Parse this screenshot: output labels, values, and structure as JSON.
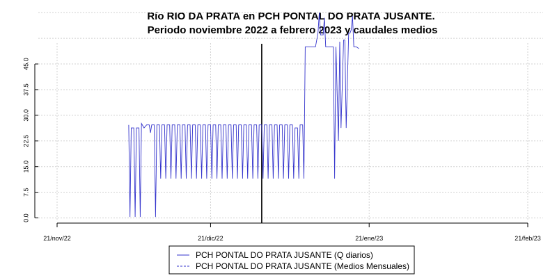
{
  "chart_data": {
    "type": "line",
    "title": "Río RIO DA PRATA en PCH PONTAL DO PRATA JUSANTE.",
    "subtitle": "Periodo noviembre 2022 a febrero 2023 y caudales medios",
    "xlabel": "",
    "ylabel": "",
    "x_range": [
      "2022-11-21",
      "2023-02-21"
    ],
    "ylim": [
      -0.9,
      51.1
    ],
    "x_ticks": [
      "2022-11-21",
      "2022-12-21",
      "2023-01-21",
      "2023-02-21"
    ],
    "x_tick_labels": [
      "21/nov/22",
      "21/dic/22",
      "21/ene/23",
      "21/feb/23"
    ],
    "y_ticks": [
      0.0,
      7.5,
      15.0,
      22.5,
      30.0,
      37.5,
      45.0
    ],
    "y_tick_labels": [
      "0.0",
      "7.5",
      "15.0",
      "22.5",
      "30.0",
      "37.5",
      "45.0"
    ],
    "grid": true,
    "vertical_marker_date": "2022-12-31",
    "series": [
      {
        "name": "PCH PONTAL DO PRATA JUSANTE (Q diarios)",
        "style": "solid",
        "color": "#3333cc",
        "points": [
          [
            "2022-12-05 00:00",
            27.2
          ],
          [
            "2022-12-05 06:00",
            0.3
          ],
          [
            "2022-12-05 12:00",
            26.3
          ],
          [
            "2022-12-06 00:00",
            26.3
          ],
          [
            "2022-12-06 06:00",
            0.3
          ],
          [
            "2022-12-06 12:00",
            26.3
          ],
          [
            "2022-12-07 00:00",
            26.3
          ],
          [
            "2022-12-07 06:00",
            0.3
          ],
          [
            "2022-12-07 12:00",
            27.6
          ],
          [
            "2022-12-08 00:00",
            26.3
          ],
          [
            "2022-12-08 12:00",
            27.2
          ],
          [
            "2022-12-09 00:00",
            27.2
          ],
          [
            "2022-12-09 06:00",
            24.9
          ],
          [
            "2022-12-09 12:00",
            27.2
          ],
          [
            "2022-12-10 00:00",
            27.2
          ],
          [
            "2022-12-10 06:00",
            0.3
          ],
          [
            "2022-12-10 12:00",
            27.2
          ],
          [
            "2022-12-11 00:00",
            27.2
          ],
          [
            "2022-12-11 06:00",
            11.5
          ],
          [
            "2022-12-11 12:00",
            27.2
          ],
          [
            "2022-12-12 00:00",
            27.2
          ],
          [
            "2022-12-12 06:00",
            11.5
          ],
          [
            "2022-12-12 12:00",
            27.2
          ],
          [
            "2022-12-13 00:00",
            27.2
          ],
          [
            "2022-12-13 06:00",
            11.5
          ],
          [
            "2022-12-13 12:00",
            27.2
          ],
          [
            "2022-12-14 00:00",
            27.2
          ],
          [
            "2022-12-14 06:00",
            11.5
          ],
          [
            "2022-12-14 12:00",
            27.2
          ],
          [
            "2022-12-15 00:00",
            27.2
          ],
          [
            "2022-12-15 06:00",
            11.5
          ],
          [
            "2022-12-15 12:00",
            27.2
          ],
          [
            "2022-12-16 00:00",
            27.2
          ],
          [
            "2022-12-16 06:00",
            11.5
          ],
          [
            "2022-12-16 12:00",
            27.2
          ],
          [
            "2022-12-17 00:00",
            27.2
          ],
          [
            "2022-12-17 06:00",
            11.5
          ],
          [
            "2022-12-17 12:00",
            27.2
          ],
          [
            "2022-12-18 00:00",
            27.2
          ],
          [
            "2022-12-18 06:00",
            11.5
          ],
          [
            "2022-12-18 12:00",
            27.2
          ],
          [
            "2022-12-19 00:00",
            27.2
          ],
          [
            "2022-12-19 06:00",
            11.5
          ],
          [
            "2022-12-19 12:00",
            27.2
          ],
          [
            "2022-12-20 00:00",
            27.2
          ],
          [
            "2022-12-20 06:00",
            11.5
          ],
          [
            "2022-12-20 12:00",
            27.2
          ],
          [
            "2022-12-21 00:00",
            27.2
          ],
          [
            "2022-12-21 06:00",
            11.5
          ],
          [
            "2022-12-21 12:00",
            27.2
          ],
          [
            "2022-12-22 00:00",
            27.2
          ],
          [
            "2022-12-22 06:00",
            11.5
          ],
          [
            "2022-12-22 12:00",
            27.2
          ],
          [
            "2022-12-23 00:00",
            27.2
          ],
          [
            "2022-12-23 06:00",
            11.5
          ],
          [
            "2022-12-23 12:00",
            27.2
          ],
          [
            "2022-12-24 00:00",
            27.2
          ],
          [
            "2022-12-24 06:00",
            11.5
          ],
          [
            "2022-12-24 12:00",
            27.2
          ],
          [
            "2022-12-25 00:00",
            27.2
          ],
          [
            "2022-12-25 06:00",
            11.5
          ],
          [
            "2022-12-25 12:00",
            27.2
          ],
          [
            "2022-12-26 00:00",
            27.2
          ],
          [
            "2022-12-26 06:00",
            11.5
          ],
          [
            "2022-12-26 12:00",
            27.2
          ],
          [
            "2022-12-27 00:00",
            27.2
          ],
          [
            "2022-12-27 06:00",
            11.5
          ],
          [
            "2022-12-27 12:00",
            27.2
          ],
          [
            "2022-12-28 00:00",
            27.2
          ],
          [
            "2022-12-28 06:00",
            11.5
          ],
          [
            "2022-12-28 12:00",
            27.2
          ],
          [
            "2022-12-29 00:00",
            27.2
          ],
          [
            "2022-12-29 06:00",
            11.5
          ],
          [
            "2022-12-29 12:00",
            27.2
          ],
          [
            "2022-12-30 00:00",
            27.2
          ],
          [
            "2022-12-30 06:00",
            11.5
          ],
          [
            "2022-12-30 12:00",
            27.2
          ],
          [
            "2022-12-31 00:00",
            27.2
          ],
          [
            "2022-12-31 06:00",
            11.5
          ],
          [
            "2022-12-31 12:00",
            27.2
          ],
          [
            "2023-01-01 00:00",
            27.2
          ],
          [
            "2023-01-01 06:00",
            11.5
          ],
          [
            "2023-01-01 12:00",
            27.2
          ],
          [
            "2023-01-02 00:00",
            27.2
          ],
          [
            "2023-01-02 06:00",
            11.5
          ],
          [
            "2023-01-02 12:00",
            27.2
          ],
          [
            "2023-01-03 00:00",
            27.2
          ],
          [
            "2023-01-03 06:00",
            11.5
          ],
          [
            "2023-01-03 12:00",
            27.2
          ],
          [
            "2023-01-04 00:00",
            27.2
          ],
          [
            "2023-01-04 06:00",
            11.5
          ],
          [
            "2023-01-04 12:00",
            27.2
          ],
          [
            "2023-01-05 00:00",
            27.2
          ],
          [
            "2023-01-05 06:00",
            11.5
          ],
          [
            "2023-01-05 12:00",
            27.2
          ],
          [
            "2023-01-06 00:00",
            27.2
          ],
          [
            "2023-01-06 06:00",
            11.5
          ],
          [
            "2023-01-06 12:00",
            26.3
          ],
          [
            "2023-01-07 00:00",
            26.3
          ],
          [
            "2023-01-07 06:00",
            11.5
          ],
          [
            "2023-01-07 12:00",
            27.2
          ],
          [
            "2023-01-08 00:00",
            27.2
          ],
          [
            "2023-01-08 06:00",
            11.5
          ],
          [
            "2023-01-08 12:00",
            50.0
          ],
          [
            "2023-01-10 06:00",
            50.0
          ],
          [
            "2023-01-10 12:00",
            50.0
          ],
          [
            "2023-01-11 00:00",
            54.0
          ],
          [
            "2023-01-11 06:00",
            60.0
          ],
          [
            "2023-01-11 12:00",
            53.5
          ],
          [
            "2023-01-12 00:00",
            53.5
          ],
          [
            "2023-01-12 06:00",
            58.5
          ],
          [
            "2023-01-12 12:00",
            50.0
          ],
          [
            "2023-01-13 00:00",
            50.0
          ],
          [
            "2023-01-13 06:00",
            50.0
          ],
          [
            "2023-01-13 12:00",
            50.0
          ],
          [
            "2023-01-14 00:00",
            50.0
          ],
          [
            "2023-01-14 06:00",
            11.5
          ],
          [
            "2023-01-14 12:00",
            50.0
          ],
          [
            "2023-01-15 00:00",
            22.5
          ],
          [
            "2023-01-15 06:00",
            51.5
          ],
          [
            "2023-01-15 12:00",
            26.3
          ],
          [
            "2023-01-16 00:00",
            52.0
          ],
          [
            "2023-01-16 06:00",
            52.0
          ],
          [
            "2023-01-16 12:00",
            26.3
          ],
          [
            "2023-01-17 00:00",
            54.0
          ],
          [
            "2023-01-17 06:00",
            54.0
          ],
          [
            "2023-01-17 12:00",
            55.0
          ],
          [
            "2023-01-17 18:00",
            59.0
          ],
          [
            "2023-01-18 00:00",
            50.0
          ],
          [
            "2023-01-18 12:00",
            50.0
          ],
          [
            "2023-01-19 00:00",
            49.5
          ]
        ]
      },
      {
        "name": "PCH PONTAL DO PRATA JUSANTE (Medios Mensuales)",
        "style": "dashed",
        "color": "#3333cc",
        "points": []
      }
    ],
    "legend": {
      "placement": "bottom-center",
      "entries": [
        "PCH PONTAL DO PRATA JUSANTE (Q diarios)",
        "PCH PONTAL DO PRATA JUSANTE (Medios Mensuales)"
      ]
    }
  }
}
